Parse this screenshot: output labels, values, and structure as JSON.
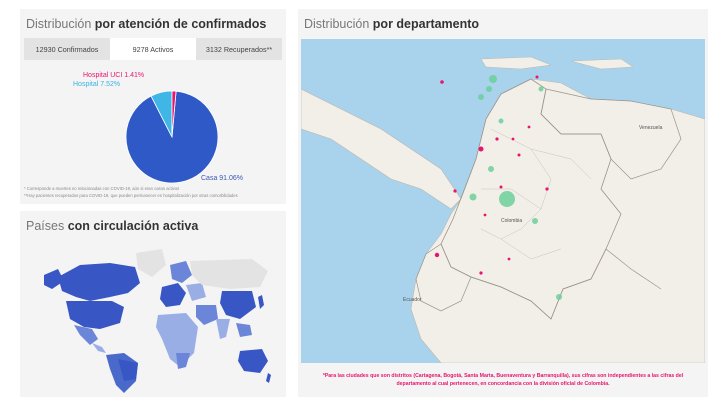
{
  "attention": {
    "title_light": "Distribución",
    "title_bold": "por atención de confirmados",
    "tabs": [
      {
        "label": "12930 Confirmados",
        "active": false
      },
      {
        "label": "9278 Activos",
        "active": true
      },
      {
        "label": "3132 Recuperados**",
        "active": false
      }
    ],
    "chart_data": {
      "type": "pie",
      "title": "",
      "slices": [
        {
          "label": "Casa",
          "value": 91.06,
          "display": "Casa 91.06%",
          "color": "#2e59c7"
        },
        {
          "label": "Hospital",
          "value": 7.52,
          "display": "Hospital 7.52%",
          "color": "#3fb6e6"
        },
        {
          "label": "Hospital UCI",
          "value": 1.41,
          "display": "Hospital UCI 1.41%",
          "color": "#e6166e"
        }
      ]
    },
    "notes": [
      "* Corresponde a muertes no relacionadas con COVID-19, aún si eran casos activos",
      "**Hay pacientes recuperados para COVID-19, que pueden permanecer en hospitalización por otras comorbilidades"
    ]
  },
  "countries": {
    "title_light": "Países",
    "title_bold": "con circulación activa"
  },
  "departments": {
    "title_light": "Distribución",
    "title_bold": "por departamento",
    "map_labels": {
      "venezuela": "Venezuela",
      "colombia": "Colombia",
      "ecuador": "Ecuador"
    },
    "disclaimer": "*Para las ciudades que son distritos (Cartagena, Bogotá, Santa Marta, Buenaventura y Barranquilla), sus cifras son independientes a las cifras del departamento al cual pertenecen, en concordancia con la división oficial de Colombia."
  },
  "colors": {
    "confirmed_marker": "#e6166e",
    "recovered_marker": "#6ccf9a",
    "active_country": "#3856c4",
    "accent": "#e6166e"
  }
}
